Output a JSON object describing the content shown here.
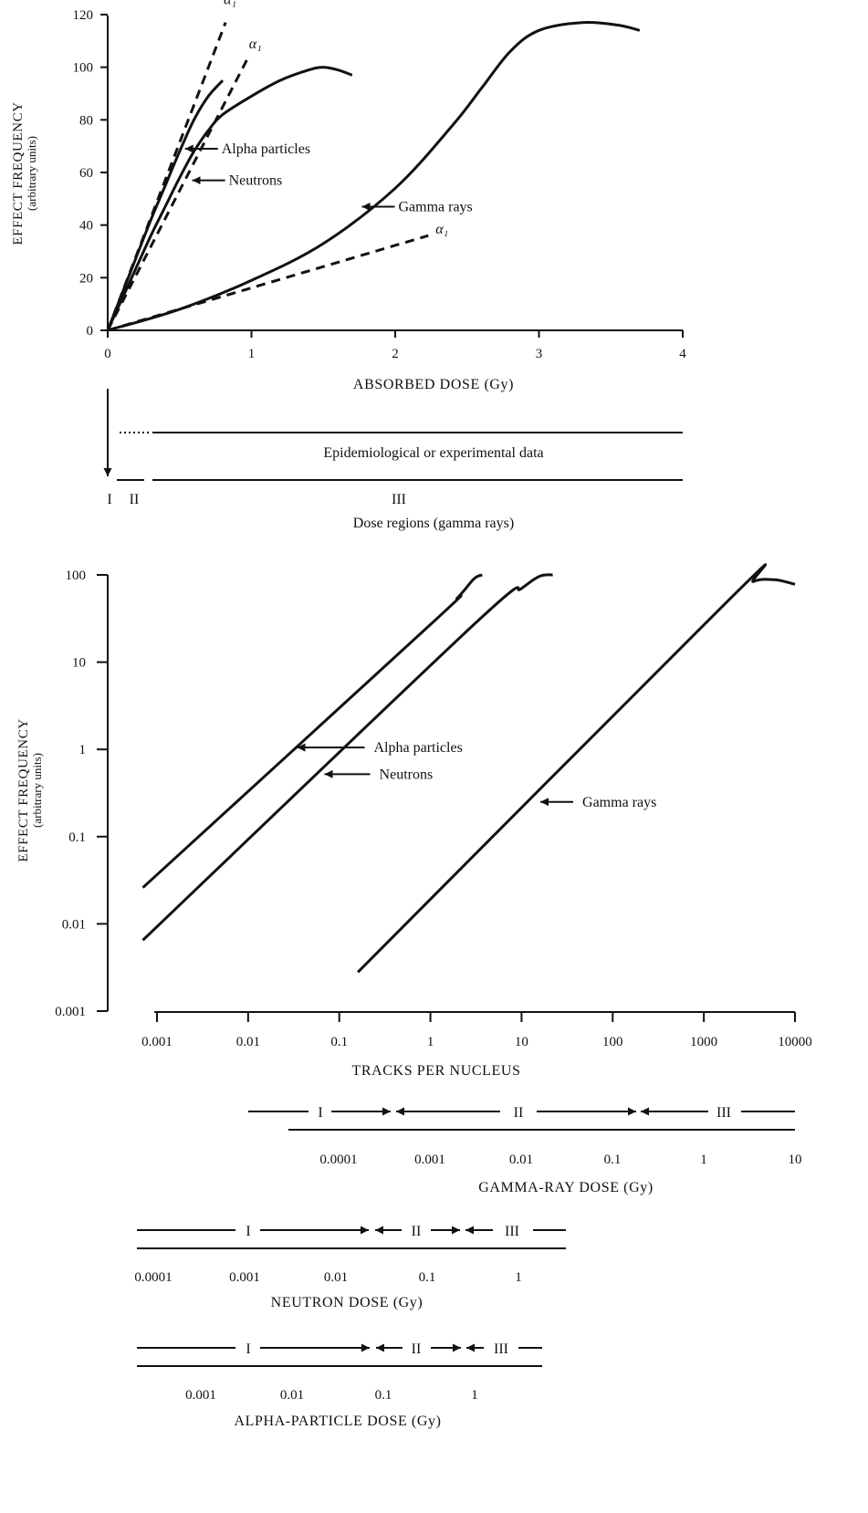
{
  "chart_data": [
    {
      "type": "line",
      "xlabel": "ABSORBED DOSE (Gy)",
      "ylabel": "EFFECT FREQUENCY",
      "ylabel_sub": "(arbitrary units)",
      "xlim": [
        0,
        4
      ],
      "ylim": [
        0,
        120
      ],
      "x_ticks": [
        0,
        1,
        2,
        3,
        4
      ],
      "y_ticks": [
        0,
        20,
        40,
        60,
        80,
        100,
        120
      ],
      "series": [
        {
          "name": "Alpha particles",
          "style": "solid",
          "points": [
            [
              0,
              0
            ],
            [
              0.1,
              14
            ],
            [
              0.2,
              28
            ],
            [
              0.3,
              42
            ],
            [
              0.4,
              55
            ],
            [
              0.5,
              68
            ],
            [
              0.6,
              80
            ],
            [
              0.7,
              89
            ],
            [
              0.8,
              95
            ]
          ]
        },
        {
          "name": "Neutrons",
          "style": "solid",
          "points": [
            [
              0,
              0
            ],
            [
              0.1,
              12
            ],
            [
              0.2,
              24
            ],
            [
              0.3,
              36
            ],
            [
              0.4,
              47
            ],
            [
              0.5,
              58
            ],
            [
              0.6,
              68
            ],
            [
              0.7,
              76
            ],
            [
              0.8,
              82
            ],
            [
              1.0,
              89
            ],
            [
              1.2,
              95
            ],
            [
              1.4,
              99
            ],
            [
              1.5,
              100
            ],
            [
              1.6,
              99
            ],
            [
              1.7,
              97
            ]
          ]
        },
        {
          "name": "Gamma rays",
          "style": "solid",
          "points": [
            [
              0,
              0
            ],
            [
              0.5,
              8
            ],
            [
              1.0,
              19
            ],
            [
              1.5,
              33
            ],
            [
              2.0,
              54
            ],
            [
              2.4,
              78
            ],
            [
              2.6,
              92
            ],
            [
              2.8,
              106
            ],
            [
              3.0,
              114
            ],
            [
              3.3,
              117
            ],
            [
              3.55,
              116
            ],
            [
              3.7,
              114
            ]
          ]
        }
      ],
      "tangents": [
        {
          "name": "α₁",
          "points": [
            [
              0,
              0
            ],
            [
              0.82,
              117
            ]
          ]
        },
        {
          "name": "α₁",
          "points": [
            [
              0,
              0
            ],
            [
              0.97,
              103
            ]
          ]
        },
        {
          "name": "α₁",
          "points": [
            [
              0,
              0
            ],
            [
              2.23,
              36
            ]
          ]
        }
      ],
      "annotations": [
        {
          "text": "Alpha particles",
          "at": [
            0.5,
            69
          ]
        },
        {
          "text": "Neutrons",
          "at": [
            0.55,
            57
          ]
        },
        {
          "text": "Gamma rays",
          "at": [
            1.73,
            47
          ]
        }
      ],
      "dose_regions": {
        "label": "Dose regions (gamma rays)",
        "regions": [
          "I",
          "II",
          "III"
        ],
        "band_label": "Epidemiological or experimental data"
      }
    },
    {
      "type": "line",
      "x_scale": "log",
      "y_scale": "log",
      "xlabel": "TRACKS PER NUCLEUS",
      "ylabel": "EFFECT FREQUENCY",
      "ylabel_sub": "(arbitrary units)",
      "xlim": [
        0.0005,
        12000
      ],
      "ylim": [
        0.001,
        100
      ],
      "x_ticks": [
        0.001,
        0.01,
        0.1,
        1,
        10,
        100,
        1000,
        10000
      ],
      "x_tick_labels": [
        "0.001",
        "0.01",
        "0.1",
        "1",
        "10",
        "100",
        "1000",
        "10000"
      ],
      "y_ticks": [
        0.001,
        0.01,
        0.1,
        1,
        10,
        100
      ],
      "y_tick_labels": [
        "0.001",
        "0.01",
        "0.1",
        "1",
        "10",
        "100"
      ],
      "series": [
        {
          "name": "Alpha particles",
          "points": [
            [
              0.0007,
              0.026
            ],
            [
              1,
              27
            ],
            [
              2,
              55
            ],
            [
              3,
              90
            ],
            [
              3.7,
              100
            ]
          ]
        },
        {
          "name": "Neutrons",
          "points": [
            [
              0.0007,
              0.0065
            ],
            [
              3,
              27
            ],
            [
              10,
              70
            ],
            [
              16,
              97
            ],
            [
              22,
              100
            ]
          ]
        },
        {
          "name": "Gamma rays",
          "points": [
            [
              0.16,
              0.0028
            ],
            [
              2000,
              55
            ],
            [
              3500,
              84
            ],
            [
              6000,
              88
            ],
            [
              10000,
              78
            ]
          ]
        }
      ],
      "annotations": [
        {
          "text": "Alpha particles",
          "at": [
            0.03,
            1.05
          ]
        },
        {
          "text": "Neutrons",
          "at": [
            0.06,
            0.52
          ]
        },
        {
          "text": "Gamma rays",
          "at": [
            14,
            0.25
          ]
        }
      ],
      "dose_scales": [
        {
          "label": "GAMMA-RAY DOSE (Gy)",
          "ticks": [
            "0.0001",
            "0.001",
            "0.01",
            "0.1",
            "1",
            "10"
          ],
          "regions": [
            "I",
            "II",
            "III"
          ]
        },
        {
          "label": "NEUTRON DOSE (Gy)",
          "ticks": [
            "0.0001",
            "0.001",
            "0.01",
            "0.1",
            "1"
          ],
          "regions": [
            "I",
            "II",
            "III"
          ]
        },
        {
          "label": "ALPHA-PARTICLE DOSE (Gy)",
          "ticks": [
            "0.001",
            "0.01",
            "0.1",
            "1"
          ],
          "regions": [
            "I",
            "II",
            "III"
          ]
        }
      ]
    }
  ]
}
